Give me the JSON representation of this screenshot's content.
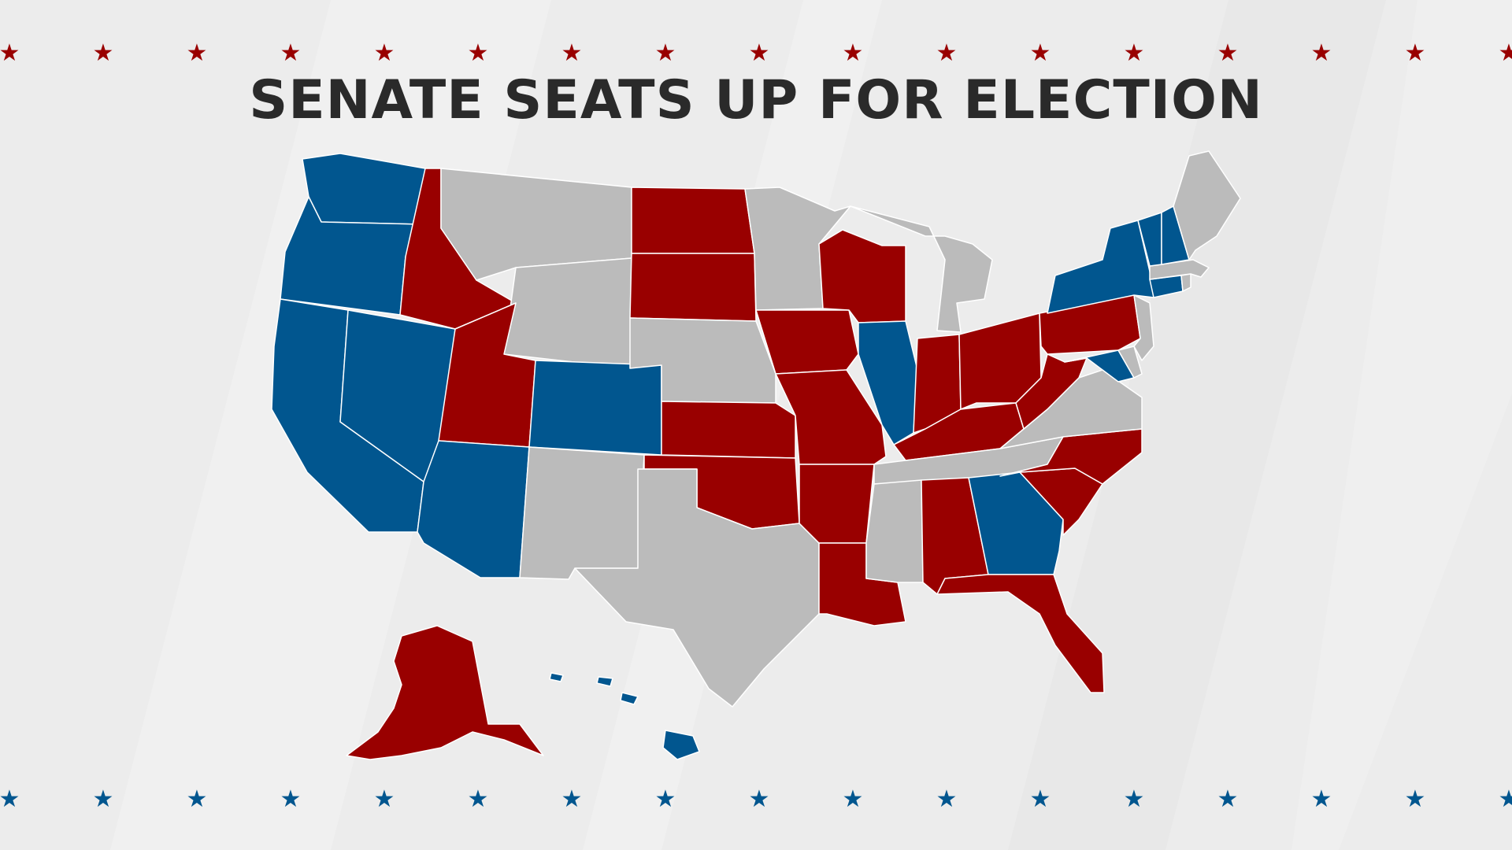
{
  "title": "SENATE SEATS UP FOR ELECTION",
  "colors": {
    "republican": "#990000",
    "democrat": "#01568f",
    "no_election": "#bbbbbb",
    "background": "#ececec",
    "title": "#2a2a2a"
  },
  "star_rows": {
    "top": {
      "color": "#990000",
      "glyph": "★",
      "count": 17
    },
    "bottom": {
      "color": "#01568f",
      "glyph": "★",
      "count": 17
    }
  },
  "states": {
    "WA": "democrat",
    "OR": "democrat",
    "CA": "democrat",
    "NV": "democrat",
    "AZ": "democrat",
    "CO": "democrat",
    "IL": "democrat",
    "GA": "democrat",
    "NY": "democrat",
    "VT": "democrat",
    "NH": "democrat",
    "CT": "democrat",
    "MD": "democrat",
    "HI": "democrat",
    "ID": "republican",
    "UT": "republican",
    "ND": "republican",
    "SD": "republican",
    "KS": "republican",
    "OK": "republican",
    "IA": "republican",
    "MO": "republican",
    "AR": "republican",
    "LA": "republican",
    "WI": "republican",
    "IN": "republican",
    "OH": "republican",
    "KY": "republican",
    "PA": "republican",
    "WV": "republican",
    "NC": "republican",
    "SC": "republican",
    "AL": "republican",
    "FL": "republican",
    "AK": "republican",
    "MT": "none",
    "WY": "none",
    "NE": "none",
    "NM": "none",
    "TX": "none",
    "MN": "none",
    "MI": "none",
    "MS": "none",
    "TN": "none",
    "VA": "none",
    "ME": "none",
    "MA": "none",
    "NJ": "none",
    "DE": "none",
    "RI": "none"
  }
}
